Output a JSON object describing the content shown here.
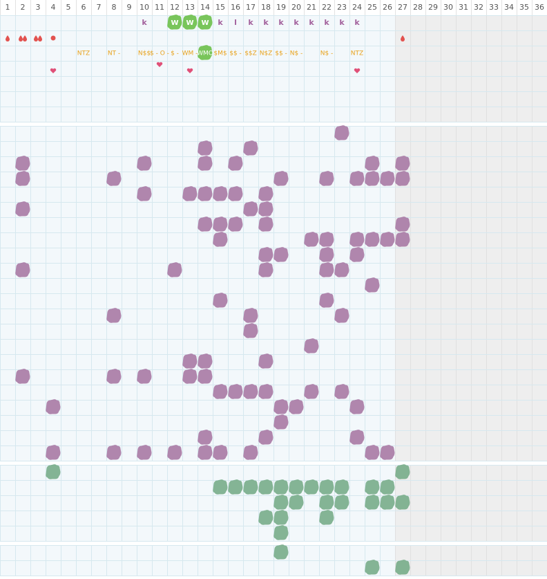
{
  "header": {
    "columns": [
      "1",
      "2",
      "3",
      "4",
      "5",
      "6",
      "7",
      "8",
      "9",
      "10",
      "11",
      "12",
      "13",
      "14",
      "15",
      "16",
      "17",
      "18",
      "19",
      "20",
      "21",
      "22",
      "23",
      "24",
      "25",
      "26",
      "27",
      "28",
      "29",
      "30",
      "31",
      "32",
      "33",
      "34",
      "35",
      "36"
    ]
  },
  "top_labels": [
    "k",
    "W",
    "W",
    "W",
    "k",
    "l",
    "k",
    "k",
    "k",
    "k",
    "k",
    "k",
    "k",
    "k"
  ],
  "codes": [
    "NTZ",
    "NT -",
    "N$$",
    "$ - O -",
    "$ -",
    "WM -",
    "WMO",
    "$M$",
    "$$ -",
    "$$Z",
    "N$Z",
    "$$ -",
    "N$ -",
    "N$ -",
    "NTZ"
  ]
}
